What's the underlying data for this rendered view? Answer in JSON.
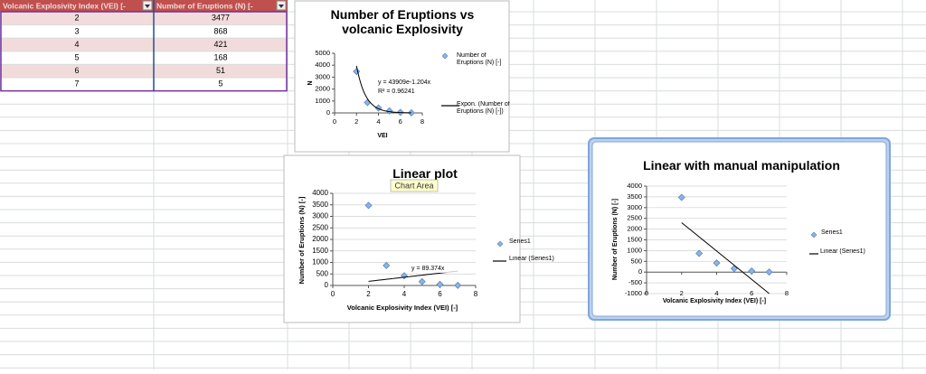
{
  "table": {
    "header": [
      "Volcanic Explosivity Index (VEI) [-",
      "Number of Eruptions (N) [-"
    ],
    "rows": [
      [
        2,
        3477
      ],
      [
        3,
        868
      ],
      [
        4,
        421
      ],
      [
        5,
        168
      ],
      [
        6,
        51
      ],
      [
        7,
        5
      ]
    ]
  },
  "chart_data": [
    {
      "type": "scatter",
      "title": "Number of Eruptions vs volcanic Explosivity",
      "x_label": "VEI",
      "y_label": "N",
      "x": [
        2,
        3,
        4,
        5,
        6,
        7
      ],
      "series": [
        {
          "name": "Number of Eruptions (N) [-]",
          "color": "#4f81bd",
          "values": [
            3477,
            868,
            421,
            168,
            51,
            5
          ]
        }
      ],
      "trendline": {
        "kind": "exponential",
        "name": "Expon. (Number of Eruptions (N) [-])",
        "a": 43909,
        "b": -1.204,
        "equation": "y = 43909e-1.204x",
        "r2": "R² = 0.96241",
        "color": "#000000"
      },
      "xlim": [
        0,
        8
      ],
      "xticks": [
        0,
        2,
        4,
        6,
        8
      ],
      "ylim": [
        0,
        5000
      ],
      "yticks": [
        0,
        1000,
        2000,
        3000,
        4000,
        5000
      ],
      "grid": false
    },
    {
      "type": "scatter",
      "title": "Linear plot",
      "tooltip": "Chart Area",
      "x_label": "Volcanic Explosivity Index (VEI) [-]",
      "y_label": "Number of Eruptions (N) [-]",
      "x": [
        2,
        3,
        4,
        5,
        6,
        7
      ],
      "series": [
        {
          "name": "Series1",
          "color": "#4f81bd",
          "values": [
            3477,
            868,
            421,
            168,
            51,
            5
          ]
        }
      ],
      "trendline": {
        "kind": "linear",
        "name": "Linear (Series1)",
        "a": 89.374,
        "equation": "y = 89.374x",
        "color": "#000000"
      },
      "xlim": [
        0,
        8
      ],
      "xticks": [
        0,
        2,
        4,
        6,
        8
      ],
      "ylim": [
        0,
        4000
      ],
      "yticks": [
        0,
        500,
        1000,
        1500,
        2000,
        2500,
        3000,
        3500,
        4000
      ],
      "grid": true
    },
    {
      "type": "scatter",
      "title": "Linear with manual manipulation",
      "x_label": "Volcanic Explosivity Index (VEI) [-]",
      "y_label": "Number of Eruptions (N) [-]",
      "x": [
        2,
        3,
        4,
        5,
        6,
        7
      ],
      "series": [
        {
          "name": "Series1",
          "color": "#4f81bd",
          "values": [
            3477,
            868,
            421,
            168,
            51,
            5
          ]
        },
        {
          "name": "Linear (Series1)",
          "color": "#000000",
          "mode": "line",
          "x": [
            2,
            7
          ],
          "values": [
            2300,
            -1000
          ]
        }
      ],
      "xlim": [
        0,
        8
      ],
      "xticks": [
        0,
        2,
        4,
        6,
        8
      ],
      "ylim": [
        -1000,
        4000
      ],
      "yticks": [
        -1000,
        -500,
        0,
        500,
        1000,
        1500,
        2000,
        2500,
        3000,
        3500,
        4000
      ],
      "grid": true
    }
  ]
}
